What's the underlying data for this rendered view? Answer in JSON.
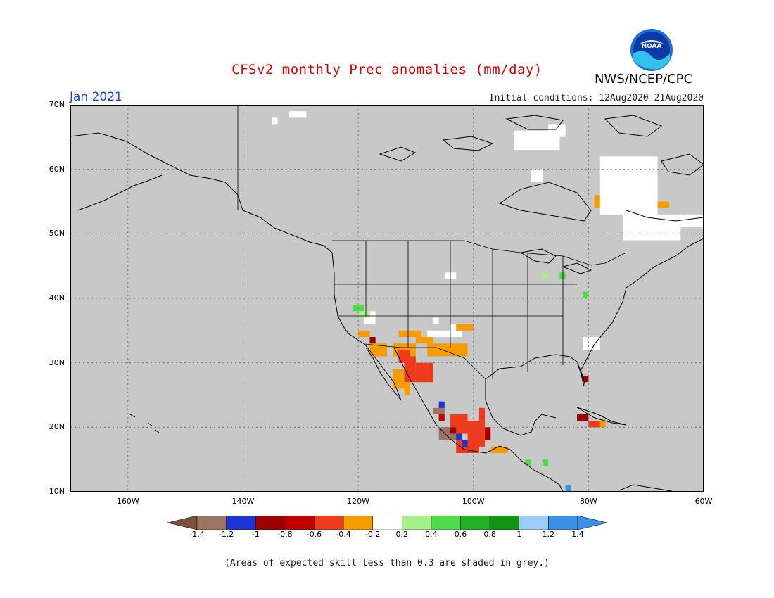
{
  "header": {
    "title": "CFSv2 monthly Prec anomalies (mm/day)",
    "month": "Jan 2021",
    "initial_conditions": "Initial conditions: 12Aug2020-21Aug2020",
    "agency": "NWS/NCEP/CPC",
    "logo_text": "NOAA"
  },
  "map": {
    "lat_labels": [
      "70N",
      "60N",
      "50N",
      "40N",
      "30N",
      "20N",
      "10N"
    ],
    "lon_labels": [
      "160W",
      "140W",
      "120W",
      "100W",
      "80W",
      "60W"
    ],
    "extent": {
      "lon_min": -170,
      "lon_max": -60,
      "lat_min": 10,
      "lat_max": 70
    },
    "grey_color": "#c8c8c8"
  },
  "legend": {
    "labels": [
      "-1.4",
      "-1.2",
      "-1",
      "-0.8",
      "-0.6",
      "-0.4",
      "-0.2",
      "0.2",
      "0.4",
      "0.6",
      "0.8",
      "1",
      "1.2",
      "1.4"
    ],
    "colors": [
      "#7a4f3b",
      "#9c7464",
      "#1c35d4",
      "#9c0000",
      "#c20000",
      "#ef3b1c",
      "#f59c00",
      "#ffffff",
      "#a6f08a",
      "#4fdc4a",
      "#22b122",
      "#109610",
      "#9ccdf6",
      "#3c8ee6",
      "#3c8ee6"
    ]
  },
  "footnote": "(Areas of expected skill less than 0.3 are shaded in grey.)"
}
